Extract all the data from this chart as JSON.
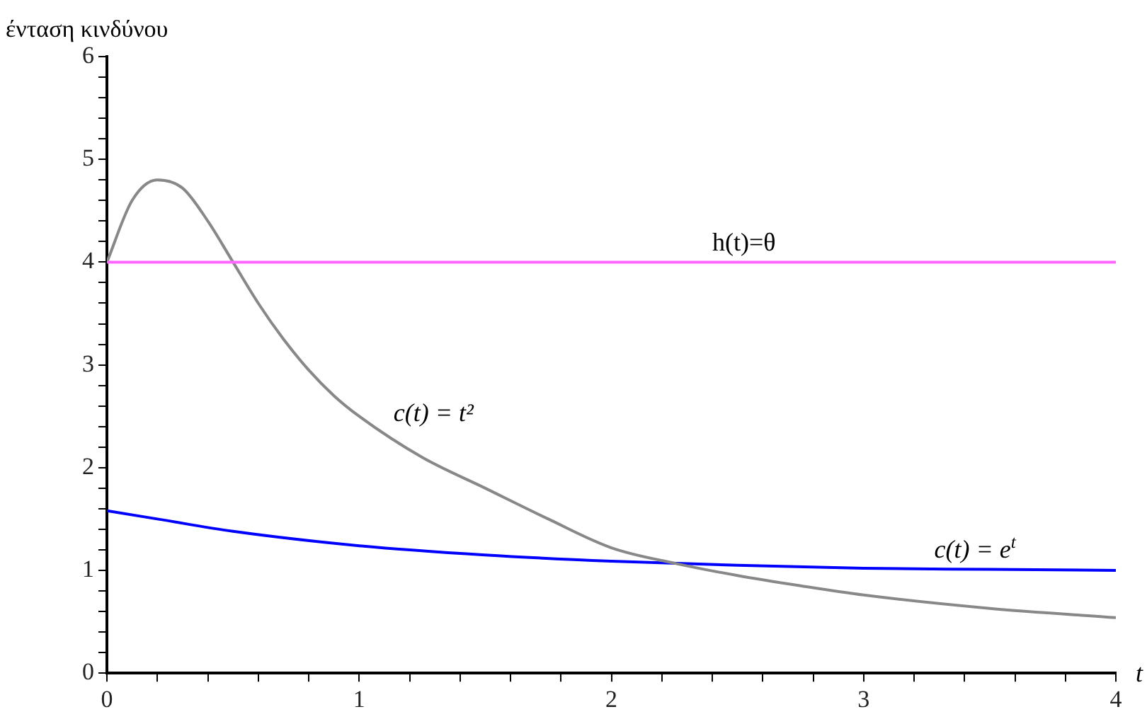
{
  "chart_data": {
    "type": "line",
    "xlabel": "t",
    "ylabel": "ένταση κινδύνου",
    "xlim": [
      0,
      4
    ],
    "ylim": [
      0,
      6
    ],
    "xticks": [
      0,
      {
        "value": 0.2,
        "label": null
      },
      {
        "value": 0.4,
        "label": null
      },
      {
        "value": 0.6,
        "label": null
      },
      {
        "value": 0.8,
        "label": null
      },
      1,
      {
        "value": 1.2,
        "label": null
      },
      {
        "value": 1.4,
        "label": null
      },
      {
        "value": 1.6,
        "label": null
      },
      {
        "value": 1.8,
        "label": null
      },
      2,
      {
        "value": 2.2,
        "label": null
      },
      {
        "value": 2.4,
        "label": null
      },
      {
        "value": 2.6,
        "label": null
      },
      {
        "value": 2.8,
        "label": null
      },
      3,
      {
        "value": 3.2,
        "label": null
      },
      {
        "value": 3.4,
        "label": null
      },
      {
        "value": 3.6,
        "label": null
      },
      {
        "value": 3.8,
        "label": null
      },
      4
    ],
    "yticks": [
      0,
      {
        "value": 0.2,
        "label": null
      },
      {
        "value": 0.4,
        "label": null
      },
      {
        "value": 0.6,
        "label": null
      },
      {
        "value": 0.8,
        "label": null
      },
      1,
      {
        "value": 1.2,
        "label": null
      },
      {
        "value": 1.4,
        "label": null
      },
      {
        "value": 1.6,
        "label": null
      },
      {
        "value": 1.8,
        "label": null
      },
      2,
      {
        "value": 2.2,
        "label": null
      },
      {
        "value": 2.4,
        "label": null
      },
      {
        "value": 2.6,
        "label": null
      },
      {
        "value": 2.8,
        "label": null
      },
      3,
      {
        "value": 3.2,
        "label": null
      },
      {
        "value": 3.4,
        "label": null
      },
      {
        "value": 3.6,
        "label": null
      },
      {
        "value": 3.8,
        "label": null
      },
      4,
      {
        "value": 4.2,
        "label": null
      },
      {
        "value": 4.4,
        "label": null
      },
      {
        "value": 4.6,
        "label": null
      },
      {
        "value": 4.8,
        "label": null
      },
      5,
      {
        "value": 5.2,
        "label": null
      },
      {
        "value": 5.4,
        "label": null
      },
      {
        "value": 5.6,
        "label": null
      },
      {
        "value": 5.8,
        "label": null
      },
      6
    ],
    "grid": false,
    "legend": false,
    "marker": "none",
    "series": [
      {
        "name": "h(t)=θ",
        "color": "#ff66ff",
        "x": [
          0,
          4
        ],
        "values": [
          4,
          4
        ]
      },
      {
        "name": "c(t) = t²",
        "color": "#888888",
        "x": [
          0,
          0.1,
          0.2,
          0.3,
          0.4,
          0.5,
          0.6,
          0.7,
          0.8,
          0.9,
          1,
          1.25,
          1.5,
          1.75,
          2,
          2.25,
          2.5,
          2.75,
          3,
          3.5,
          4
        ],
        "values": [
          4.0,
          4.6,
          4.8,
          4.72,
          4.4,
          4.0,
          3.6,
          3.25,
          2.95,
          2.7,
          2.5,
          2.1,
          1.8,
          1.5,
          1.22,
          1.07,
          0.95,
          0.85,
          0.76,
          0.63,
          0.54
        ]
      },
      {
        "name": "c(t) = e$^{t}$",
        "color": "#0000ff",
        "x": [
          0,
          0.2,
          0.5,
          1,
          1.5,
          2,
          2.5,
          3,
          3.5,
          4
        ],
        "values": [
          1.58,
          1.5,
          1.38,
          1.24,
          1.15,
          1.09,
          1.05,
          1.02,
          1.01,
          1.0
        ]
      }
    ]
  }
}
